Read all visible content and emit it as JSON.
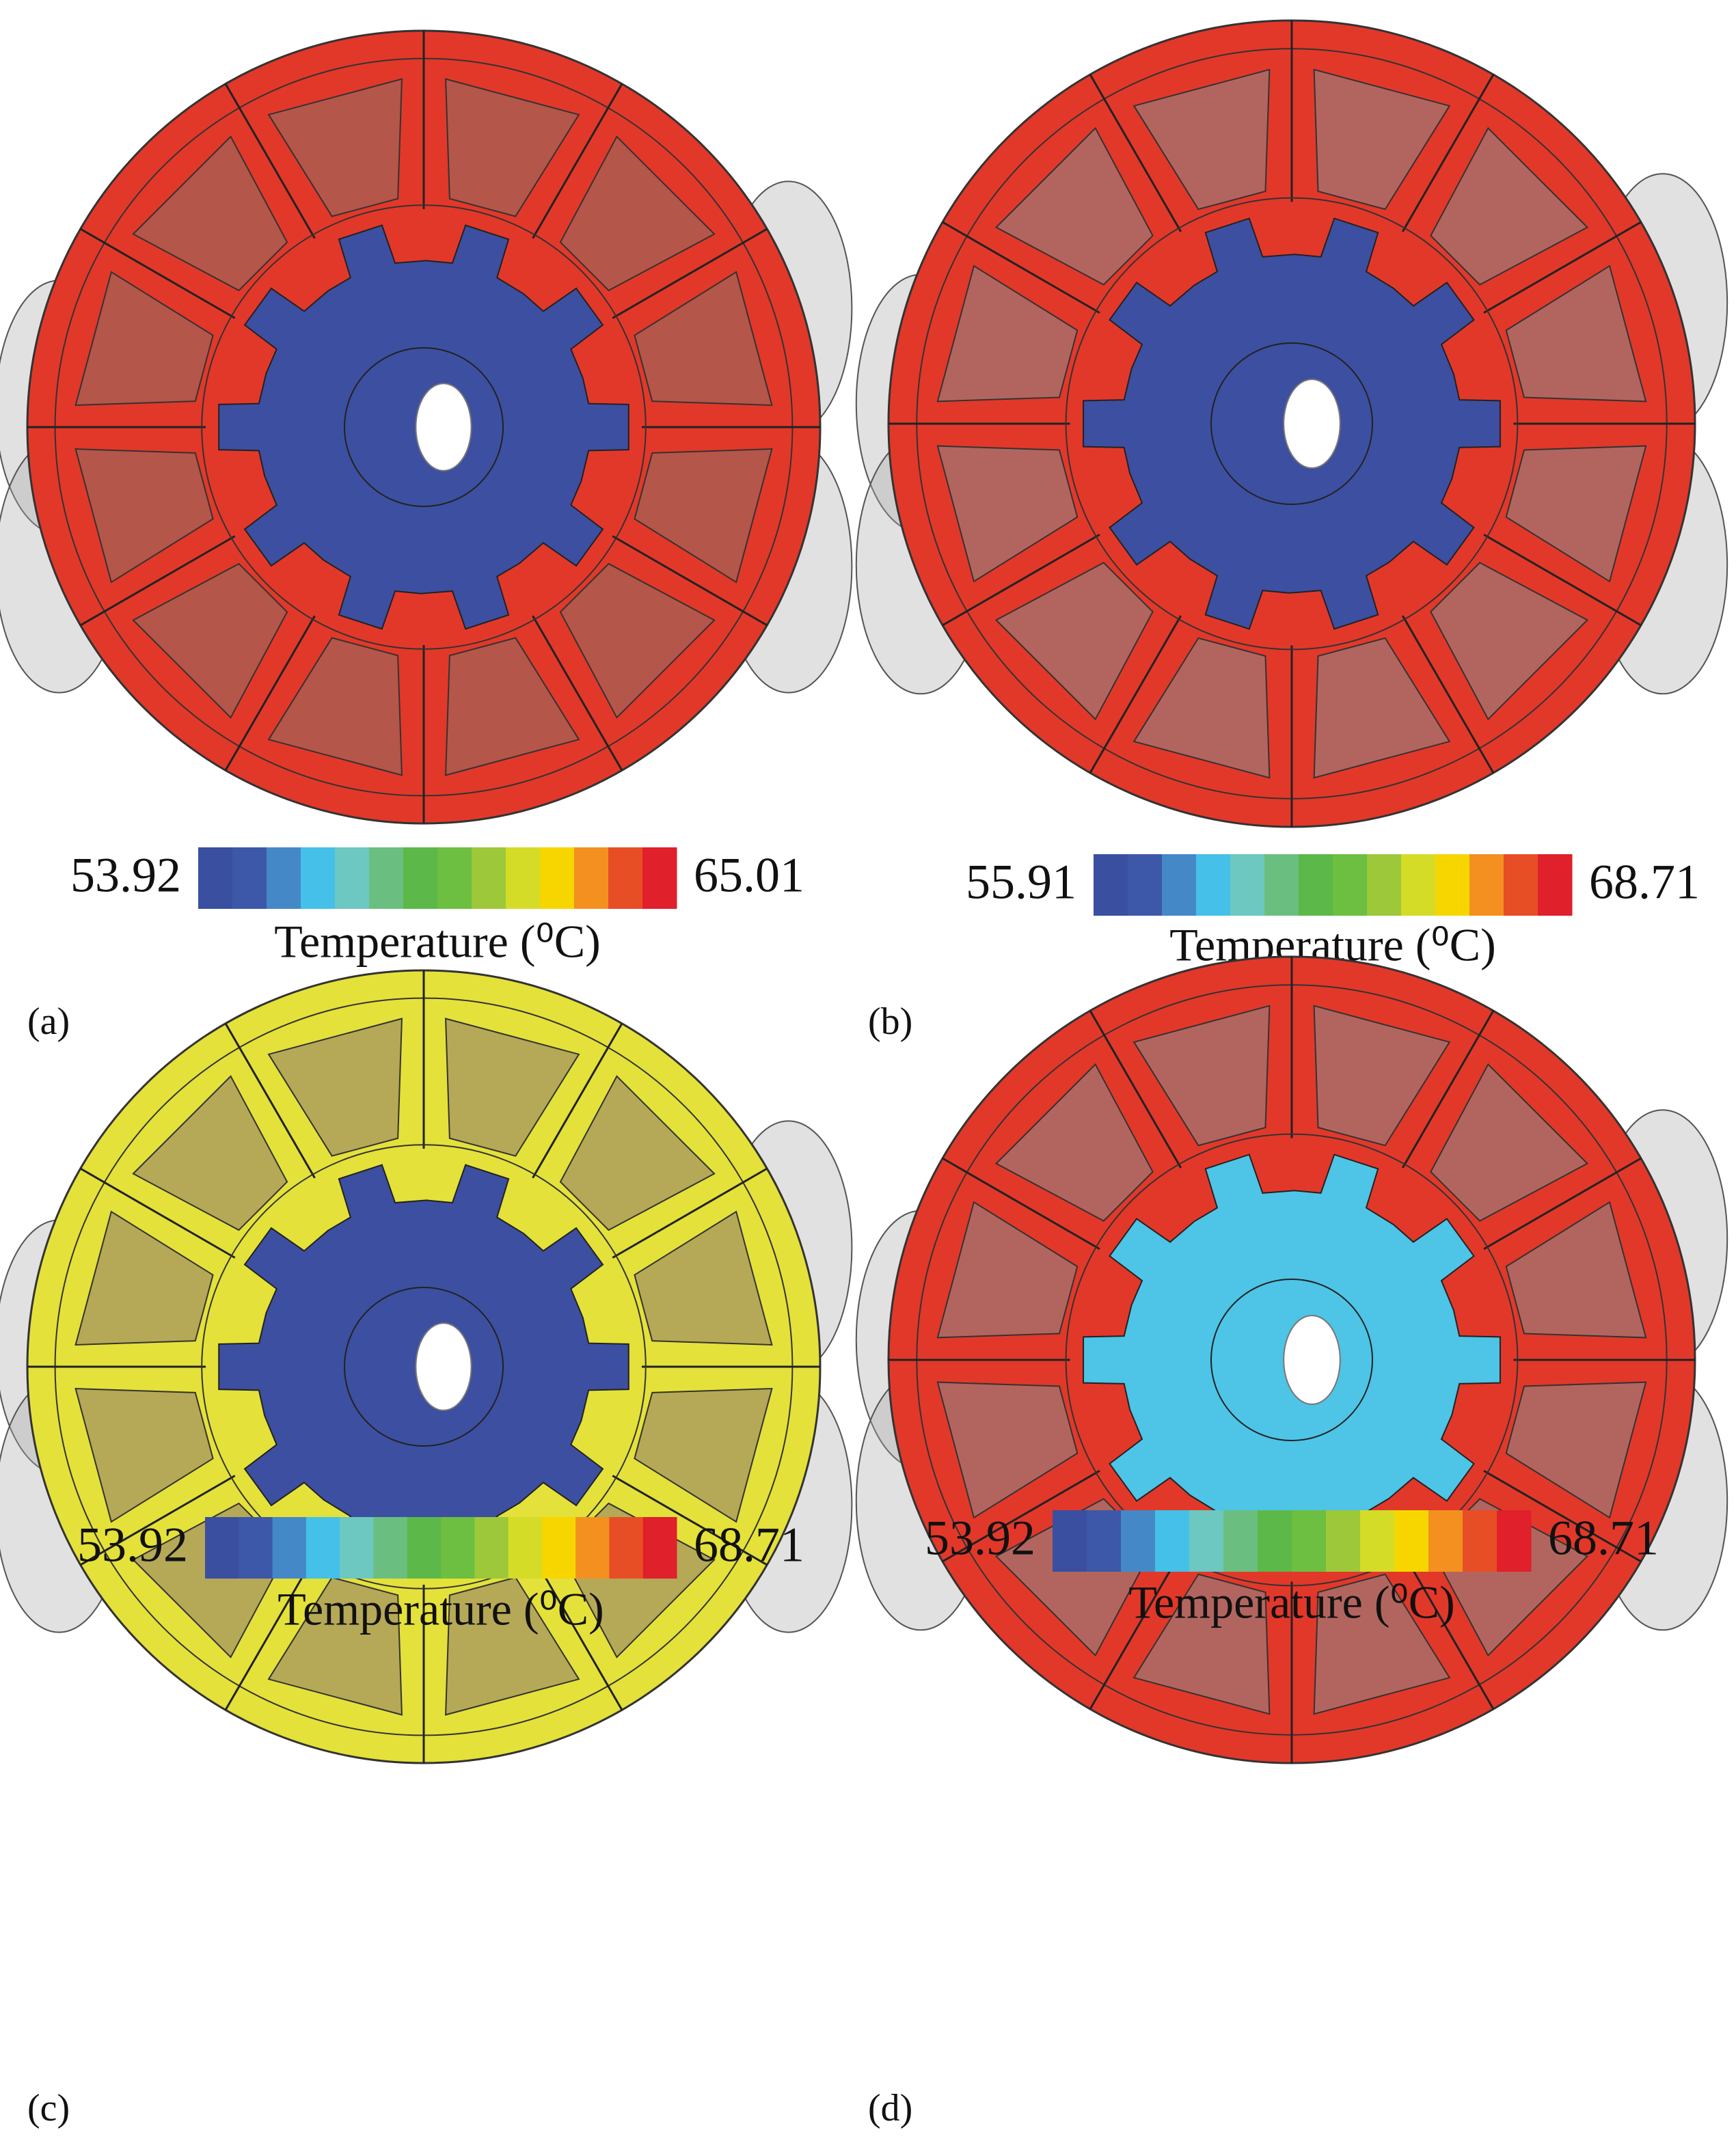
{
  "panels": [
    {
      "label": "(a)",
      "min": 53.92,
      "max": 65.01,
      "colorbar_title": "Temperature (⁰C)",
      "stator_color": "#e2382a",
      "rotor_color": "#3d4fa0",
      "slot_color": "#8e6f62"
    },
    {
      "label": "(b)",
      "min": 55.91,
      "max": 68.71,
      "colorbar_title": "Temperature (⁰C)",
      "stator_color": "#e2382a",
      "rotor_color": "#3d4fa0",
      "slot_color": "#8a8a8a"
    },
    {
      "label": "(c)",
      "min": 53.92,
      "max": 68.71,
      "colorbar_title": "Temperature (⁰C)",
      "stator_color": "#e4e13a",
      "rotor_color": "#3d4fa0",
      "slot_color": "#8e7a70"
    },
    {
      "label": "(d)",
      "min": 53.92,
      "max": 68.71,
      "colorbar_title": "Temperature (⁰C)",
      "stator_color": "#e2382a",
      "rotor_color": "#4ec4e6",
      "slot_color": "#8a8a8a"
    }
  ],
  "colorbar_colors": [
    "#3a4fa0",
    "#3d58a8",
    "#4488c8",
    "#45c0e8",
    "#6cc8c0",
    "#6abf80",
    "#5cb848",
    "#6cbf40",
    "#9cc83a",
    "#d4dc28",
    "#f7d600",
    "#f39020",
    "#e84e26",
    "#e0202a"
  ]
}
